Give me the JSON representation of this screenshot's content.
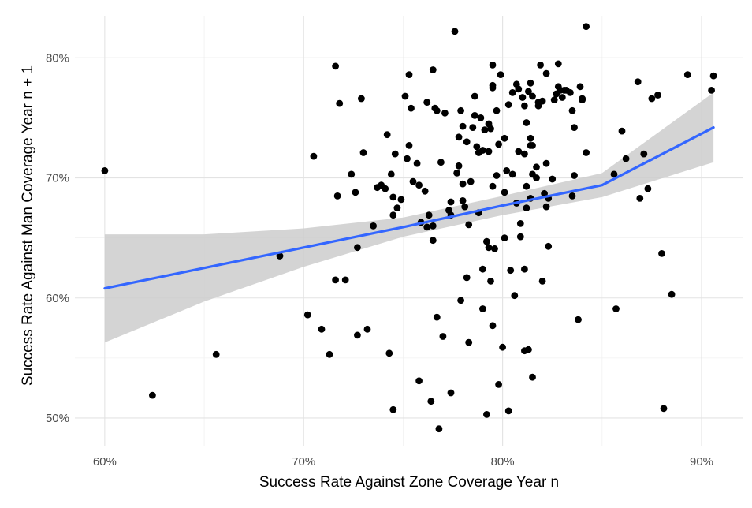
{
  "chart_data": {
    "type": "scatter",
    "title": "",
    "xlabel": "Success Rate Against Zone Coverage Year n",
    "ylabel": "Success Rate Against Man Coverage Year n + 1",
    "xlim": [
      0.585,
      0.921
    ],
    "ylim": [
      0.477,
      0.835
    ],
    "x_ticks": [
      0.6,
      0.7,
      0.8,
      0.9
    ],
    "x_tick_labels": [
      "60%",
      "70%",
      "80%",
      "90%"
    ],
    "y_ticks": [
      0.5,
      0.6,
      0.7,
      0.8
    ],
    "y_tick_labels": [
      "50%",
      "60%",
      "70%",
      "80%"
    ],
    "grid": true,
    "colors": {
      "points": "#000000",
      "fit_line": "#3366ff",
      "confidence_band": "#cccccc"
    },
    "trend_line": {
      "method": "linear fit with confidence band",
      "x": [
        0.6,
        0.65,
        0.7,
        0.75,
        0.8,
        0.85,
        0.906
      ],
      "fit": [
        0.608,
        0.625,
        0.642,
        0.659,
        0.677,
        0.694,
        0.742
      ],
      "lower": [
        0.563,
        0.597,
        0.626,
        0.651,
        0.669,
        0.684,
        0.713
      ],
      "upper": [
        0.653,
        0.653,
        0.658,
        0.667,
        0.685,
        0.704,
        0.771
      ]
    },
    "points": [
      [
        0.6,
        0.706
      ],
      [
        0.624,
        0.519
      ],
      [
        0.656,
        0.553
      ],
      [
        0.688,
        0.635
      ],
      [
        0.702,
        0.586
      ],
      [
        0.705,
        0.718
      ],
      [
        0.709,
        0.574
      ],
      [
        0.713,
        0.553
      ],
      [
        0.716,
        0.793
      ],
      [
        0.717,
        0.685
      ],
      [
        0.716,
        0.615
      ],
      [
        0.718,
        0.762
      ],
      [
        0.721,
        0.615
      ],
      [
        0.724,
        0.703
      ],
      [
        0.726,
        0.688
      ],
      [
        0.727,
        0.642
      ],
      [
        0.727,
        0.569
      ],
      [
        0.729,
        0.766
      ],
      [
        0.73,
        0.721
      ],
      [
        0.732,
        0.574
      ],
      [
        0.735,
        0.66
      ],
      [
        0.737,
        0.692
      ],
      [
        0.739,
        0.694
      ],
      [
        0.741,
        0.691
      ],
      [
        0.742,
        0.736
      ],
      [
        0.743,
        0.554
      ],
      [
        0.744,
        0.703
      ],
      [
        0.745,
        0.684
      ],
      [
        0.745,
        0.669
      ],
      [
        0.745,
        0.507
      ],
      [
        0.746,
        0.72
      ],
      [
        0.747,
        0.675
      ],
      [
        0.749,
        0.682
      ],
      [
        0.751,
        0.768
      ],
      [
        0.752,
        0.716
      ],
      [
        0.753,
        0.786
      ],
      [
        0.753,
        0.727
      ],
      [
        0.754,
        0.758
      ],
      [
        0.755,
        0.697
      ],
      [
        0.757,
        0.712
      ],
      [
        0.758,
        0.694
      ],
      [
        0.758,
        0.531
      ],
      [
        0.759,
        0.663
      ],
      [
        0.761,
        0.689
      ],
      [
        0.762,
        0.763
      ],
      [
        0.762,
        0.659
      ],
      [
        0.763,
        0.669
      ],
      [
        0.764,
        0.514
      ],
      [
        0.765,
        0.66
      ],
      [
        0.765,
        0.79
      ],
      [
        0.765,
        0.648
      ],
      [
        0.766,
        0.758
      ],
      [
        0.767,
        0.756
      ],
      [
        0.767,
        0.584
      ],
      [
        0.768,
        0.491
      ],
      [
        0.769,
        0.713
      ],
      [
        0.77,
        0.568
      ],
      [
        0.771,
        0.754
      ],
      [
        0.773,
        0.673
      ],
      [
        0.774,
        0.669
      ],
      [
        0.774,
        0.521
      ],
      [
        0.774,
        0.68
      ],
      [
        0.776,
        0.822
      ],
      [
        0.777,
        0.704
      ],
      [
        0.778,
        0.71
      ],
      [
        0.778,
        0.734
      ],
      [
        0.779,
        0.598
      ],
      [
        0.779,
        0.756
      ],
      [
        0.78,
        0.743
      ],
      [
        0.78,
        0.695
      ],
      [
        0.78,
        0.681
      ],
      [
        0.781,
        0.676
      ],
      [
        0.782,
        0.73
      ],
      [
        0.782,
        0.617
      ],
      [
        0.783,
        0.661
      ],
      [
        0.783,
        0.563
      ],
      [
        0.784,
        0.697
      ],
      [
        0.785,
        0.742
      ],
      [
        0.786,
        0.768
      ],
      [
        0.786,
        0.752
      ],
      [
        0.787,
        0.726
      ],
      [
        0.788,
        0.671
      ],
      [
        0.788,
        0.721
      ],
      [
        0.789,
        0.75
      ],
      [
        0.79,
        0.591
      ],
      [
        0.79,
        0.723
      ],
      [
        0.79,
        0.624
      ],
      [
        0.791,
        0.74
      ],
      [
        0.792,
        0.503
      ],
      [
        0.792,
        0.647
      ],
      [
        0.793,
        0.745
      ],
      [
        0.793,
        0.722
      ],
      [
        0.793,
        0.642
      ],
      [
        0.794,
        0.741
      ],
      [
        0.794,
        0.614
      ],
      [
        0.795,
        0.794
      ],
      [
        0.795,
        0.775
      ],
      [
        0.795,
        0.777
      ],
      [
        0.795,
        0.693
      ],
      [
        0.795,
        0.577
      ],
      [
        0.796,
        0.641
      ],
      [
        0.797,
        0.702
      ],
      [
        0.797,
        0.756
      ],
      [
        0.798,
        0.728
      ],
      [
        0.798,
        0.528
      ],
      [
        0.799,
        0.786
      ],
      [
        0.8,
        0.559
      ],
      [
        0.801,
        0.733
      ],
      [
        0.801,
        0.688
      ],
      [
        0.801,
        0.65
      ],
      [
        0.802,
        0.706
      ],
      [
        0.803,
        0.761
      ],
      [
        0.803,
        0.506
      ],
      [
        0.804,
        0.623
      ],
      [
        0.805,
        0.771
      ],
      [
        0.805,
        0.703
      ],
      [
        0.806,
        0.602
      ],
      [
        0.807,
        0.778
      ],
      [
        0.807,
        0.679
      ],
      [
        0.808,
        0.774
      ],
      [
        0.808,
        0.722
      ],
      [
        0.809,
        0.651
      ],
      [
        0.809,
        0.662
      ],
      [
        0.81,
        0.767
      ],
      [
        0.811,
        0.76
      ],
      [
        0.811,
        0.72
      ],
      [
        0.811,
        0.624
      ],
      [
        0.811,
        0.556
      ],
      [
        0.812,
        0.746
      ],
      [
        0.812,
        0.693
      ],
      [
        0.812,
        0.675
      ],
      [
        0.813,
        0.557
      ],
      [
        0.813,
        0.772
      ],
      [
        0.814,
        0.779
      ],
      [
        0.814,
        0.727
      ],
      [
        0.814,
        0.733
      ],
      [
        0.814,
        0.683
      ],
      [
        0.815,
        0.534
      ],
      [
        0.815,
        0.768
      ],
      [
        0.815,
        0.727
      ],
      [
        0.815,
        0.703
      ],
      [
        0.817,
        0.709
      ],
      [
        0.817,
        0.7
      ],
      [
        0.818,
        0.763
      ],
      [
        0.818,
        0.76
      ],
      [
        0.819,
        0.794
      ],
      [
        0.82,
        0.764
      ],
      [
        0.82,
        0.614
      ],
      [
        0.821,
        0.687
      ],
      [
        0.822,
        0.712
      ],
      [
        0.822,
        0.676
      ],
      [
        0.822,
        0.787
      ],
      [
        0.823,
        0.643
      ],
      [
        0.823,
        0.683
      ],
      [
        0.825,
        0.699
      ],
      [
        0.826,
        0.765
      ],
      [
        0.827,
        0.77
      ],
      [
        0.828,
        0.795
      ],
      [
        0.828,
        0.776
      ],
      [
        0.829,
        0.773
      ],
      [
        0.83,
        0.767
      ],
      [
        0.831,
        0.773
      ],
      [
        0.832,
        0.773
      ],
      [
        0.834,
        0.771
      ],
      [
        0.835,
        0.685
      ],
      [
        0.835,
        0.756
      ],
      [
        0.836,
        0.702
      ],
      [
        0.836,
        0.742
      ],
      [
        0.838,
        0.582
      ],
      [
        0.839,
        0.776
      ],
      [
        0.84,
        0.766
      ],
      [
        0.84,
        0.765
      ],
      [
        0.842,
        0.721
      ],
      [
        0.842,
        0.826
      ],
      [
        0.856,
        0.703
      ],
      [
        0.857,
        0.591
      ],
      [
        0.86,
        0.739
      ],
      [
        0.862,
        0.716
      ],
      [
        0.868,
        0.78
      ],
      [
        0.869,
        0.683
      ],
      [
        0.871,
        0.72
      ],
      [
        0.873,
        0.691
      ],
      [
        0.875,
        0.766
      ],
      [
        0.878,
        0.769
      ],
      [
        0.88,
        0.637
      ],
      [
        0.881,
        0.508
      ],
      [
        0.885,
        0.603
      ],
      [
        0.893,
        0.786
      ],
      [
        0.905,
        0.773
      ],
      [
        0.906,
        0.785
      ]
    ]
  }
}
